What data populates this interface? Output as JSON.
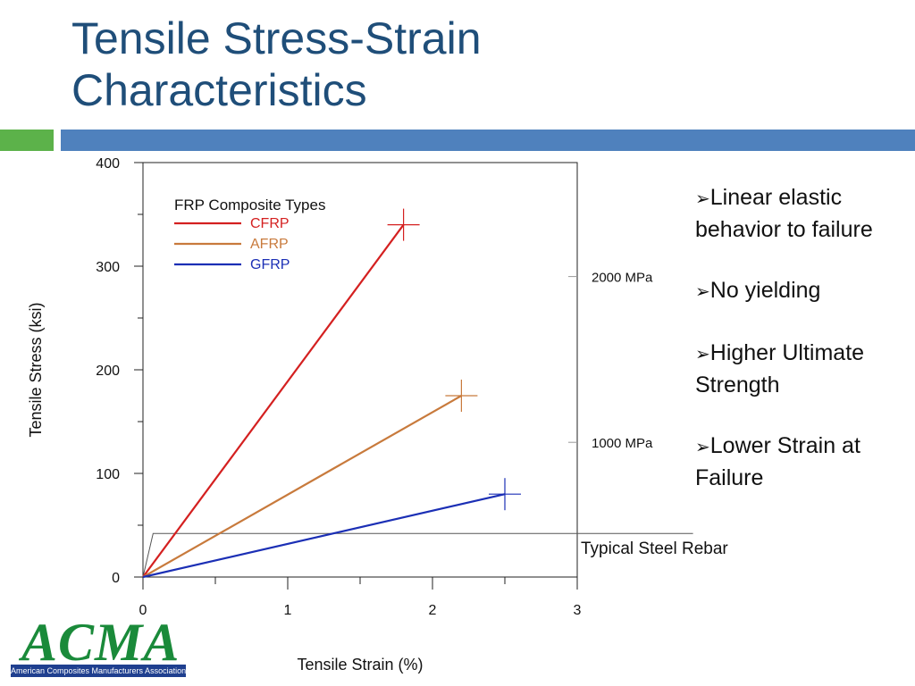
{
  "slide": {
    "title_line1": "Tensile Stress-Strain",
    "title_line2": "Characteristics",
    "bullets": [
      "Linear elastic behavior to failure",
      "No yielding",
      "Higher Ultimate Strength",
      "Lower Strain at Failure"
    ],
    "logo_text": "ACMA",
    "logo_subtext": "American Composites Manufacturers Association"
  },
  "colors": {
    "title": "#1f4e79",
    "accent_green": "#5cb24a",
    "accent_blue": "#4f81bd",
    "cfrp": "#d42020",
    "afrp": "#c87a3c",
    "gfrp": "#1b2fb5",
    "steel": "#555555"
  },
  "chart_data": {
    "type": "line",
    "xlabel": "Tensile Strain (%)",
    "ylabel": "Tensile Stress (ksi)",
    "xlim": [
      0,
      3
    ],
    "ylim": [
      0,
      400
    ],
    "xticks": [
      "0",
      "1",
      "2",
      "3"
    ],
    "yticks": [
      "0",
      "100",
      "200",
      "300",
      "400"
    ],
    "legend_title": "FRP Composite Types",
    "legend_position": "top-left",
    "series": [
      {
        "name": "CFRP",
        "color": "#d42020",
        "x": [
          0,
          1.8
        ],
        "y": [
          0,
          340
        ]
      },
      {
        "name": "AFRP",
        "color": "#c87a3c",
        "x": [
          0,
          2.2
        ],
        "y": [
          0,
          175
        ]
      },
      {
        "name": "GFRP",
        "color": "#1b2fb5",
        "x": [
          0,
          2.5
        ],
        "y": [
          0,
          80
        ]
      }
    ],
    "steel": {
      "label": "Typical Steel Rebar",
      "color": "#555555",
      "x": [
        0,
        0.07,
        3.8
      ],
      "y": [
        0,
        42,
        42
      ]
    },
    "annotations": [
      {
        "text": "2000 MPa",
        "y": 290
      },
      {
        "text": "1000 MPa",
        "y": 130
      }
    ]
  }
}
